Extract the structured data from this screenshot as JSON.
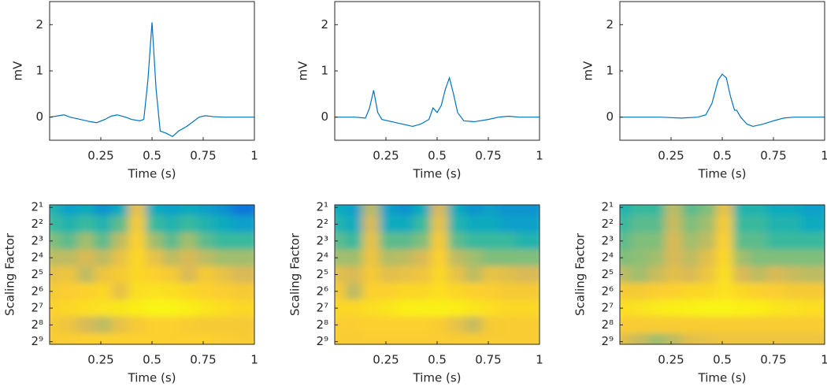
{
  "chart_data": [
    {
      "type": "line",
      "color": "#0072bd",
      "xlabel": "Time (s)",
      "ylabel": "mV",
      "xlim": [
        0,
        1
      ],
      "ylim": [
        -0.5,
        2.5
      ],
      "xticks": [
        0.25,
        0.5,
        0.75,
        1
      ],
      "yticks": [
        0,
        1,
        2
      ],
      "x": [
        0,
        0.03,
        0.07,
        0.1,
        0.15,
        0.2,
        0.23,
        0.27,
        0.3,
        0.33,
        0.37,
        0.4,
        0.44,
        0.46,
        0.48,
        0.5,
        0.52,
        0.54,
        0.57,
        0.6,
        0.63,
        0.67,
        0.7,
        0.73,
        0.76,
        0.8,
        0.85,
        0.9,
        0.95,
        1
      ],
      "values": [
        0,
        0.02,
        0.05,
        0,
        -0.05,
        -0.1,
        -0.12,
        -0.05,
        0.02,
        0.05,
        0,
        -0.05,
        -0.08,
        -0.05,
        0.8,
        2.05,
        0.6,
        -0.3,
        -0.35,
        -0.42,
        -0.3,
        -0.2,
        -0.1,
        0,
        0.03,
        0.01,
        0,
        0,
        0,
        0
      ]
    },
    {
      "type": "line",
      "color": "#0072bd",
      "xlabel": "Time (s)",
      "ylabel": "mV",
      "xlim": [
        0,
        1
      ],
      "ylim": [
        -0.5,
        2.5
      ],
      "xticks": [
        0.25,
        0.5,
        0.75,
        1
      ],
      "yticks": [
        0,
        1,
        2
      ],
      "x": [
        0,
        0.1,
        0.15,
        0.17,
        0.19,
        0.21,
        0.23,
        0.28,
        0.33,
        0.38,
        0.42,
        0.46,
        0.48,
        0.5,
        0.52,
        0.54,
        0.56,
        0.58,
        0.6,
        0.63,
        0.68,
        0.75,
        0.8,
        0.85,
        0.9,
        1
      ],
      "values": [
        0,
        0,
        -0.02,
        0.2,
        0.58,
        0.1,
        -0.05,
        -0.1,
        -0.15,
        -0.2,
        -0.15,
        -0.05,
        0.2,
        0.1,
        0.25,
        0.6,
        0.85,
        0.5,
        0.1,
        -0.08,
        -0.1,
        -0.05,
        0,
        0.02,
        0,
        0
      ]
    },
    {
      "type": "line",
      "color": "#0072bd",
      "xlabel": "Time (s)",
      "ylabel": "mV",
      "xlim": [
        0,
        1
      ],
      "ylim": [
        -0.5,
        2.5
      ],
      "xticks": [
        0.25,
        0.5,
        0.75,
        1
      ],
      "yticks": [
        0,
        1,
        2
      ],
      "x": [
        0,
        0.2,
        0.3,
        0.38,
        0.42,
        0.45,
        0.48,
        0.5,
        0.52,
        0.54,
        0.56,
        0.57,
        0.59,
        0.62,
        0.65,
        0.7,
        0.75,
        0.8,
        0.85,
        1
      ],
      "values": [
        0,
        0,
        -0.02,
        0,
        0.05,
        0.3,
        0.8,
        0.93,
        0.85,
        0.45,
        0.15,
        0.15,
        0,
        -0.15,
        -0.2,
        -0.15,
        -0.08,
        -0.02,
        0,
        0
      ]
    },
    {
      "type": "heatmap",
      "xlabel": "Time (s)",
      "ylabel": "Scaling Factor",
      "xlim": [
        0,
        1
      ],
      "xticks": [
        0.25,
        0.5,
        0.75,
        1
      ],
      "ylog": true,
      "yreverse": true,
      "ylim": [
        1.8,
        570
      ],
      "yticks": [
        {
          "value": 2,
          "label": "2¹"
        },
        {
          "value": 4,
          "label": "2²"
        },
        {
          "value": 8,
          "label": "2³"
        },
        {
          "value": 16,
          "label": "2⁴"
        },
        {
          "value": 32,
          "label": "2⁵"
        },
        {
          "value": 64,
          "label": "2⁶"
        },
        {
          "value": 128,
          "label": "2⁷"
        },
        {
          "value": 256,
          "label": "2⁸"
        },
        {
          "value": 512,
          "label": "2⁹"
        }
      ],
      "zlim": [
        0,
        1
      ],
      "colormap": [
        "#352a87",
        "#0363e1",
        "#1485d4",
        "#06a7c6",
        "#38b99e",
        "#92bf73",
        "#d9ba56",
        "#fcce2e",
        "#f9fb0e"
      ],
      "z": [
        [
          0.45,
          0.35,
          0.4,
          0.3,
          0.4,
          0.8,
          0.4,
          0.35,
          0.4,
          0.35,
          0.3,
          0.2
        ],
        [
          0.5,
          0.45,
          0.5,
          0.45,
          0.55,
          0.85,
          0.5,
          0.45,
          0.5,
          0.45,
          0.4,
          0.35
        ],
        [
          0.6,
          0.55,
          0.65,
          0.55,
          0.7,
          0.88,
          0.65,
          0.55,
          0.65,
          0.55,
          0.5,
          0.5
        ],
        [
          0.7,
          0.7,
          0.75,
          0.7,
          0.8,
          0.9,
          0.8,
          0.7,
          0.75,
          0.7,
          0.65,
          0.65
        ],
        [
          0.8,
          0.82,
          0.7,
          0.82,
          0.85,
          0.9,
          0.88,
          0.85,
          0.75,
          0.85,
          0.8,
          0.75
        ],
        [
          0.85,
          0.87,
          0.88,
          0.9,
          0.8,
          0.92,
          0.93,
          0.92,
          0.9,
          0.88,
          0.87,
          0.85
        ],
        [
          0.88,
          0.9,
          0.92,
          0.93,
          0.94,
          0.96,
          0.98,
          0.98,
          0.96,
          0.94,
          0.92,
          0.9
        ],
        [
          0.85,
          0.82,
          0.75,
          0.7,
          0.8,
          0.85,
          0.88,
          0.88,
          0.86,
          0.85,
          0.85,
          0.85
        ],
        [
          0.86,
          0.87,
          0.88,
          0.88,
          0.88,
          0.88,
          0.88,
          0.88,
          0.88,
          0.88,
          0.87,
          0.86
        ]
      ]
    },
    {
      "type": "heatmap",
      "xlabel": "Time (s)",
      "ylabel": "Scaling Factor",
      "xlim": [
        0,
        1
      ],
      "xticks": [
        0.25,
        0.5,
        0.75,
        1
      ],
      "ylog": true,
      "yreverse": true,
      "ylim": [
        1.8,
        570
      ],
      "yticks": [
        {
          "value": 2,
          "label": "2¹"
        },
        {
          "value": 4,
          "label": "2²"
        },
        {
          "value": 8,
          "label": "2³"
        },
        {
          "value": 16,
          "label": "2⁴"
        },
        {
          "value": 32,
          "label": "2⁵"
        },
        {
          "value": 64,
          "label": "2⁶"
        },
        {
          "value": 128,
          "label": "2⁷"
        },
        {
          "value": 256,
          "label": "2⁸"
        },
        {
          "value": 512,
          "label": "2⁹"
        }
      ],
      "zlim": [
        0,
        1
      ],
      "colormap": [
        "#352a87",
        "#0363e1",
        "#1485d4",
        "#06a7c6",
        "#38b99e",
        "#92bf73",
        "#d9ba56",
        "#fcce2e",
        "#f9fb0e"
      ],
      "z": [
        [
          0.4,
          0.35,
          0.7,
          0.35,
          0.3,
          0.4,
          0.75,
          0.4,
          0.3,
          0.35,
          0.3,
          0.3
        ],
        [
          0.45,
          0.4,
          0.75,
          0.4,
          0.4,
          0.5,
          0.8,
          0.45,
          0.4,
          0.4,
          0.35,
          0.35
        ],
        [
          0.55,
          0.5,
          0.8,
          0.55,
          0.55,
          0.6,
          0.85,
          0.55,
          0.5,
          0.5,
          0.5,
          0.45
        ],
        [
          0.65,
          0.65,
          0.82,
          0.68,
          0.7,
          0.75,
          0.88,
          0.7,
          0.65,
          0.6,
          0.6,
          0.6
        ],
        [
          0.78,
          0.75,
          0.85,
          0.78,
          0.8,
          0.82,
          0.9,
          0.8,
          0.7,
          0.8,
          0.78,
          0.75
        ],
        [
          0.85,
          0.7,
          0.88,
          0.88,
          0.9,
          0.9,
          0.92,
          0.9,
          0.88,
          0.87,
          0.85,
          0.85
        ],
        [
          0.9,
          0.9,
          0.92,
          0.94,
          0.96,
          0.97,
          0.97,
          0.96,
          0.94,
          0.92,
          0.9,
          0.9
        ],
        [
          0.87,
          0.87,
          0.88,
          0.88,
          0.88,
          0.88,
          0.86,
          0.8,
          0.72,
          0.85,
          0.86,
          0.86
        ],
        [
          0.86,
          0.86,
          0.87,
          0.87,
          0.87,
          0.87,
          0.87,
          0.86,
          0.86,
          0.86,
          0.86,
          0.86
        ]
      ]
    },
    {
      "type": "heatmap",
      "xlabel": "Time (s)",
      "ylabel": "Scaling Factor",
      "xlim": [
        0,
        1
      ],
      "xticks": [
        0.25,
        0.5,
        0.75,
        1
      ],
      "ylog": true,
      "yreverse": true,
      "ylim": [
        1.8,
        570
      ],
      "yticks": [
        {
          "value": 2,
          "label": "2¹"
        },
        {
          "value": 4,
          "label": "2²"
        },
        {
          "value": 8,
          "label": "2³"
        },
        {
          "value": 16,
          "label": "2⁴"
        },
        {
          "value": 32,
          "label": "2⁵"
        },
        {
          "value": 64,
          "label": "2⁶"
        },
        {
          "value": 128,
          "label": "2⁷"
        },
        {
          "value": 256,
          "label": "2⁸"
        },
        {
          "value": 512,
          "label": "2⁹"
        }
      ],
      "zlim": [
        0,
        1
      ],
      "colormap": [
        "#352a87",
        "#0363e1",
        "#1485d4",
        "#06a7c6",
        "#38b99e",
        "#92bf73",
        "#d9ba56",
        "#fcce2e",
        "#f9fb0e"
      ],
      "z": [
        [
          0.45,
          0.5,
          0.5,
          0.7,
          0.55,
          0.6,
          0.8,
          0.45,
          0.45,
          0.4,
          0.4,
          0.35
        ],
        [
          0.5,
          0.55,
          0.55,
          0.72,
          0.6,
          0.65,
          0.85,
          0.5,
          0.5,
          0.45,
          0.45,
          0.4
        ],
        [
          0.55,
          0.6,
          0.6,
          0.75,
          0.65,
          0.7,
          0.88,
          0.55,
          0.55,
          0.5,
          0.5,
          0.5
        ],
        [
          0.6,
          0.62,
          0.65,
          0.75,
          0.7,
          0.78,
          0.9,
          0.65,
          0.6,
          0.6,
          0.6,
          0.6
        ],
        [
          0.7,
          0.65,
          0.72,
          0.78,
          0.75,
          0.82,
          0.92,
          0.75,
          0.7,
          0.75,
          0.72,
          0.7
        ],
        [
          0.85,
          0.85,
          0.87,
          0.88,
          0.9,
          0.9,
          0.93,
          0.9,
          0.88,
          0.87,
          0.85,
          0.85
        ],
        [
          0.92,
          0.93,
          0.95,
          0.96,
          0.97,
          0.98,
          0.98,
          0.97,
          0.96,
          0.94,
          0.93,
          0.92
        ],
        [
          0.86,
          0.86,
          0.86,
          0.86,
          0.86,
          0.86,
          0.86,
          0.86,
          0.86,
          0.86,
          0.86,
          0.86
        ],
        [
          0.78,
          0.72,
          0.65,
          0.7,
          0.78,
          0.8,
          0.82,
          0.82,
          0.82,
          0.82,
          0.82,
          0.82
        ]
      ]
    }
  ]
}
